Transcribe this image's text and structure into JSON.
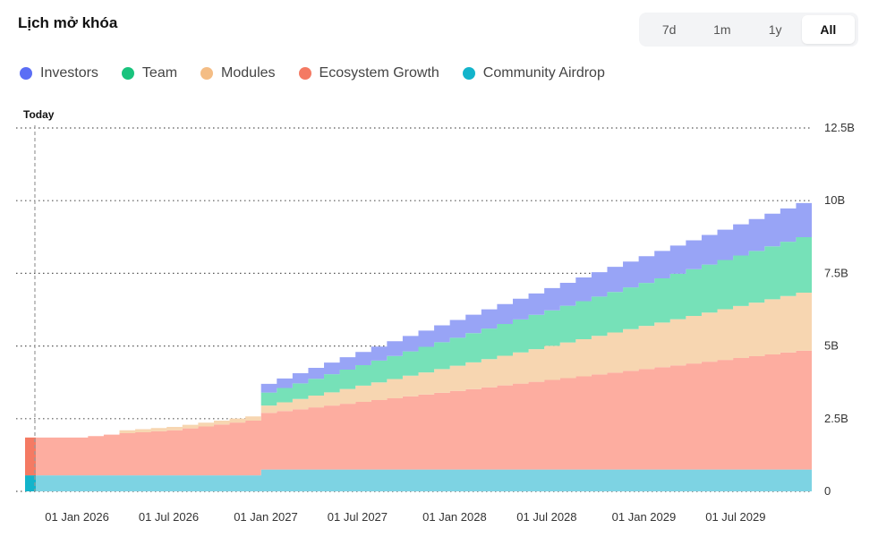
{
  "header": {
    "title": "Lịch mở khóa",
    "ranges": [
      "7d",
      "1m",
      "1y",
      "All"
    ],
    "active_range": "All"
  },
  "legend": [
    {
      "name": "Investors",
      "color": "#5b6ef5"
    },
    {
      "name": "Team",
      "color": "#19c37d"
    },
    {
      "name": "Modules",
      "color": "#f4bd85"
    },
    {
      "name": "Ecosystem Growth",
      "color": "#f47a63"
    },
    {
      "name": "Community Airdrop",
      "color": "#13b4cb"
    }
  ],
  "chart_data": {
    "type": "area",
    "stacked": true,
    "step": true,
    "title": "Lịch mở khóa",
    "x_start": "2025-11-01",
    "x_end": "2029-12-31",
    "ylim": [
      0,
      12.5
    ],
    "y_unit": "B",
    "y_ticks": [
      "0",
      "2.5B",
      "5B",
      "7.5B",
      "10B",
      "12.5B"
    ],
    "y_tick_values": [
      0,
      2.5,
      5,
      7.5,
      10,
      12.5
    ],
    "x_ticks": [
      "01 Jan 2026",
      "01 Jul 2026",
      "01 Jan 2027",
      "01 Jul 2027",
      "01 Jan 2028",
      "01 Jul 2028",
      "01 Jan 2029",
      "01 Jul 2029"
    ],
    "x_tick_dates": [
      "2026-01-01",
      "2026-07-01",
      "2027-01-01",
      "2027-07-01",
      "2028-01-01",
      "2028-07-01",
      "2029-01-01",
      "2029-07-01"
    ],
    "today_label": "Today",
    "today_date": "2025-11-20",
    "highlight_fill": {
      "Community Airdrop": "#13b4cb",
      "Ecosystem Growth": "#f47a63"
    },
    "series": [
      {
        "name": "Community Airdrop",
        "color": "#7dd3e3",
        "points": [
          [
            0,
            0.55
          ],
          [
            15,
            0.55
          ],
          [
            15,
            0.75
          ],
          [
            50,
            0.75
          ]
        ]
      },
      {
        "name": "Ecosystem Growth",
        "color": "#fdada0",
        "points": [
          [
            0,
            1.3
          ],
          [
            3,
            1.3
          ],
          [
            6,
            1.45
          ],
          [
            9,
            1.55
          ],
          [
            12,
            1.75
          ],
          [
            15,
            1.95
          ],
          [
            50,
            4.15
          ]
        ]
      },
      {
        "name": "Modules",
        "color": "#f7d6b1",
        "points": [
          [
            0,
            0
          ],
          [
            6,
            0
          ],
          [
            6,
            0.1
          ],
          [
            15,
            0.15
          ],
          [
            15,
            0.25
          ],
          [
            50,
            2.05
          ]
        ]
      },
      {
        "name": "Team",
        "color": "#76e1b8",
        "points": [
          [
            0,
            0
          ],
          [
            15,
            0
          ],
          [
            15,
            0.45
          ],
          [
            50,
            1.95
          ]
        ]
      },
      {
        "name": "Investors",
        "color": "#98a4f6",
        "points": [
          [
            0,
            0
          ],
          [
            15,
            0
          ],
          [
            15,
            0.3
          ],
          [
            50,
            1.2
          ]
        ]
      }
    ]
  }
}
